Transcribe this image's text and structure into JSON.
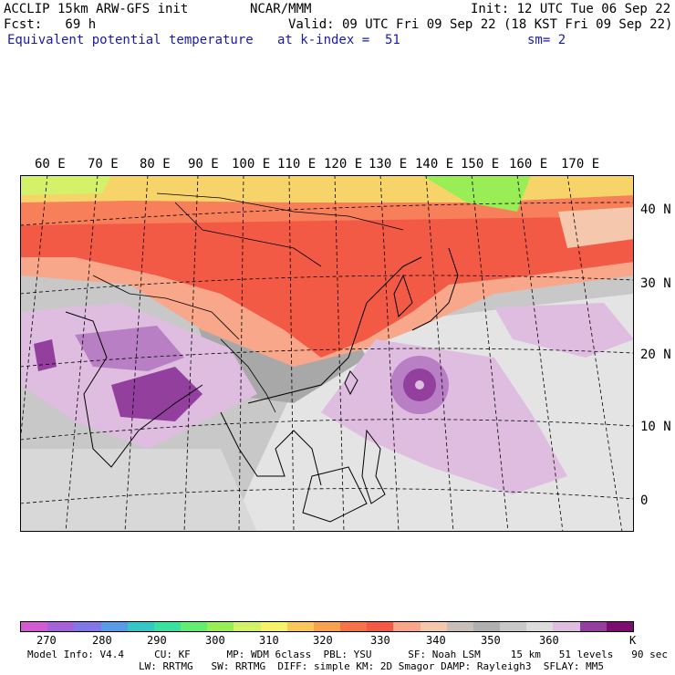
{
  "header": {
    "line1_left": "ACCLIP 15km ARW-GFS init",
    "line1_mid": "NCAR/MMM",
    "line1_right": "Init: 12 UTC Tue 06 Sep 22",
    "line2_left": "Fcst:   69 h",
    "line2_right": "Valid: 09 UTC Fri 09 Sep 22 (18 KST Fri 09 Sep 22)",
    "line3_left": "Equivalent potential temperature",
    "line3_mid": "at k-index =  51",
    "line3_right": "sm= 2"
  },
  "map": {
    "lon_labels": [
      "60 E",
      "70 E",
      "80 E",
      "90 E",
      "100 E",
      "110 E",
      "120 E",
      "130 E",
      "140 E",
      "150 E",
      "160 E",
      "170 E"
    ],
    "lat_labels": [
      "40 N",
      "30 N",
      "20 N",
      "10 N",
      "0"
    ],
    "colors": {
      "cold_red": "#f25a46",
      "orange": "#f7805a",
      "salmon": "#f8a78a",
      "peach": "#f5c8ad",
      "gray_dark": "#a8a8a8",
      "gray_mid": "#c8c8c8",
      "gray_light": "#e4e4e4",
      "lilac": "#dfbde0",
      "purple_mid": "#b87fc5",
      "purple_dark": "#923f9e",
      "green": "#99ee55",
      "yellow_green": "#d4f16a",
      "yellow": "#f7f06a"
    }
  },
  "colorbar": {
    "colors": [
      "#d05ccf",
      "#a463d8",
      "#8077e8",
      "#5a9be6",
      "#36c6c6",
      "#3ae0a0",
      "#63ee73",
      "#99ee55",
      "#d4f16a",
      "#f7f06a",
      "#f8c85a",
      "#f7a24e",
      "#f47448",
      "#f25a46",
      "#f8a78a",
      "#f5c8ad",
      "#c8c0b8",
      "#b0b0b0",
      "#c8c8c8",
      "#dcdcdc",
      "#dfbde0",
      "#923f9e",
      "#7a0d6e"
    ],
    "labels": [
      "270",
      "280",
      "290",
      "300",
      "310",
      "320",
      "330",
      "340",
      "350",
      "360",
      "K"
    ]
  },
  "footer": {
    "line1": "Model Info: V4.4     CU: KF      MP: WDM 6class  PBL: YSU      SF: Noah LSM     15 km   51 levels   90 sec",
    "line2": "LW: RRTMG   SW: RRTMG  DIFF: simple KM: 2D Smagor DAMP: Rayleigh3  SFLAY: MM5"
  }
}
